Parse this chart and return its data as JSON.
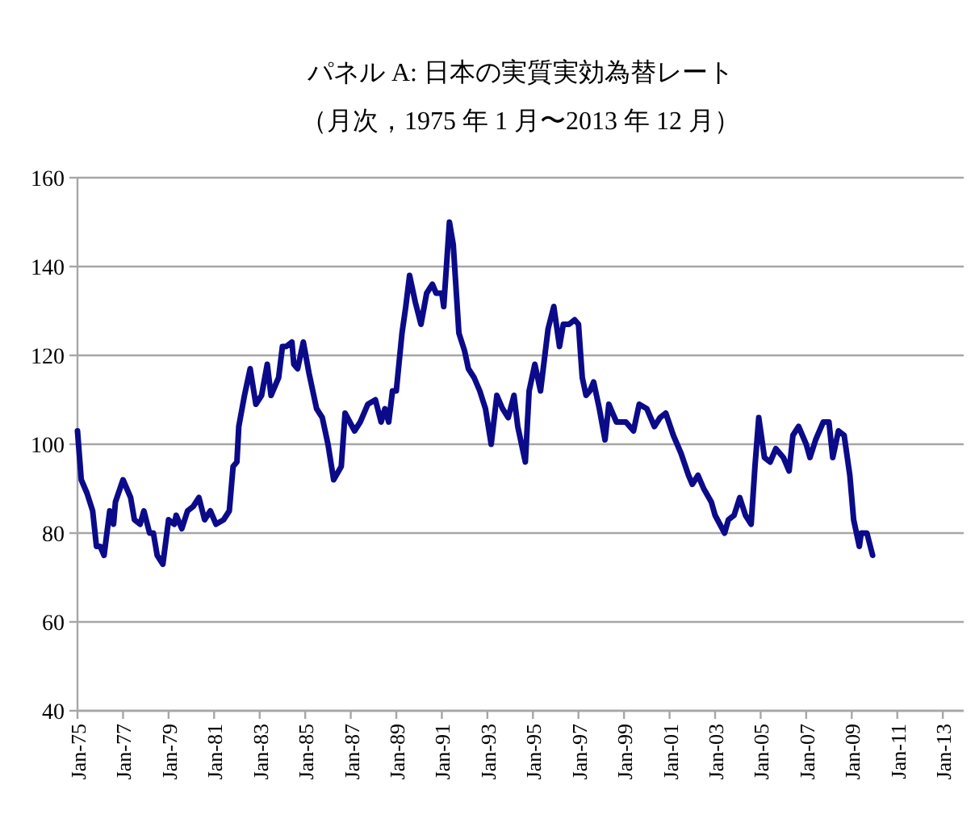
{
  "chart_data": {
    "type": "line",
    "title": "パネル A:  日本の実質実効為替レート",
    "subtitle": "（月次，1975 年 1 月〜2013 年 12 月）",
    "color": "#0b0b8a",
    "grid": "y",
    "xlim": [
      "1975-01",
      "2013-12"
    ],
    "ylim": [
      40,
      160
    ],
    "yticks": [
      40,
      60,
      80,
      100,
      120,
      140,
      160
    ],
    "xticks": [
      {
        "value": "1975-01",
        "label": "Jan-75"
      },
      {
        "value": "1977-01",
        "label": "Jan-77"
      },
      {
        "value": "1979-01",
        "label": "Jan-79"
      },
      {
        "value": "1981-01",
        "label": "Jan-81"
      },
      {
        "value": "1983-01",
        "label": "Jan-83"
      },
      {
        "value": "1985-01",
        "label": "Jan-85"
      },
      {
        "value": "1987-01",
        "label": "Jan-87"
      },
      {
        "value": "1989-01",
        "label": "Jan-89"
      },
      {
        "value": "1991-01",
        "label": "Jan-91"
      },
      {
        "value": "1993-01",
        "label": "Jan-93"
      },
      {
        "value": "1995-01",
        "label": "Jan-95"
      },
      {
        "value": "1997-01",
        "label": "Jan-97"
      },
      {
        "value": "1999-01",
        "label": "Jan-99"
      },
      {
        "value": "2001-01",
        "label": "Jan-01"
      },
      {
        "value": "2003-01",
        "label": "Jan-03"
      },
      {
        "value": "2005-01",
        "label": "Jan-05"
      },
      {
        "value": "2007-01",
        "label": "Jan-07"
      },
      {
        "value": "2009-01",
        "label": "Jan-09"
      },
      {
        "value": "2011-01",
        "label": "Jan-11"
      },
      {
        "value": "2013-01",
        "label": "Jan-13"
      }
    ],
    "x": [
      "1975-01",
      "1975-03",
      "1975-06",
      "1975-09",
      "1975-11",
      "1976-01",
      "1976-03",
      "1976-06",
      "1976-08",
      "1976-09",
      "1977-01",
      "1977-05",
      "1977-07",
      "1977-10",
      "1977-12",
      "1978-03",
      "1978-05",
      "1978-07",
      "1978-10",
      "1979-01",
      "1979-04",
      "1979-05",
      "1979-08",
      "1979-11",
      "1980-02",
      "1980-05",
      "1980-08",
      "1980-11",
      "1981-02",
      "1981-06",
      "1981-09",
      "1981-11",
      "1982-01",
      "1982-02",
      "1982-05",
      "1982-08",
      "1982-11",
      "1983-02",
      "1983-05",
      "1983-07",
      "1983-11",
      "1984-01",
      "1984-03",
      "1984-06",
      "1984-07",
      "1984-09",
      "1984-12",
      "1985-03",
      "1985-07",
      "1985-10",
      "1986-01",
      "1986-04",
      "1986-08",
      "1986-10",
      "1987-03",
      "1987-06",
      "1987-10",
      "1988-02",
      "1988-05",
      "1988-07",
      "1988-09",
      "1988-11",
      "1989-01",
      "1989-04",
      "1989-06",
      "1989-08",
      "1989-11",
      "1990-02",
      "1990-05",
      "1990-08",
      "1990-10",
      "1991-01",
      "1991-02",
      "1991-05",
      "1991-07",
      "1991-10",
      "1992-01",
      "1992-03",
      "1992-06",
      "1992-09",
      "1992-12",
      "1993-03",
      "1993-06",
      "1993-09",
      "1993-12",
      "1994-03",
      "1994-05",
      "1994-09",
      "1994-11",
      "1995-02",
      "1995-05",
      "1995-09",
      "1995-12",
      "1996-03",
      "1996-05",
      "1996-08",
      "1996-11",
      "1997-01",
      "1997-03",
      "1997-05",
      "1997-07",
      "1997-09",
      "1997-12",
      "1998-03",
      "1998-05",
      "1998-09",
      "1999-02",
      "1999-06",
      "1999-09",
      "2000-01",
      "2000-05",
      "2000-08",
      "2000-11",
      "2001-03",
      "2001-07",
      "2001-11",
      "2002-01",
      "2002-04",
      "2002-07",
      "2002-11",
      "2003-01",
      "2003-06",
      "2003-08",
      "2003-11",
      "2004-02",
      "2004-05",
      "2004-08",
      "2004-10",
      "2004-12",
      "2005-03",
      "2005-06",
      "2005-09",
      "2006-01",
      "2006-04",
      "2006-06",
      "2006-09",
      "2007-01",
      "2007-03",
      "2007-06",
      "2007-10",
      "2008-01",
      "2008-03",
      "2008-06",
      "2008-09",
      "2008-12",
      "2009-02",
      "2009-05",
      "2009-06",
      "2009-09",
      "2009-12"
    ],
    "values": [
      103,
      92,
      89,
      85,
      77,
      77,
      75,
      85,
      82,
      87,
      92,
      88,
      83,
      82,
      85,
      80,
      80,
      75,
      73,
      83,
      82,
      84,
      81,
      85,
      86,
      88,
      83,
      85,
      82,
      83,
      85,
      95,
      96,
      104,
      111,
      117,
      109,
      111,
      118,
      111,
      115,
      122,
      122,
      123,
      118,
      117,
      123,
      116,
      108,
      106,
      100,
      92,
      95,
      107,
      103,
      105,
      109,
      110,
      105,
      108,
      105,
      112,
      112,
      125,
      131,
      138,
      132,
      127,
      134,
      136,
      134,
      134,
      131,
      150,
      145,
      125,
      121,
      117,
      115,
      112,
      108,
      100,
      111,
      108,
      106,
      111,
      104,
      96,
      112,
      118,
      112,
      126,
      131,
      122,
      127,
      127,
      128,
      127,
      115,
      111,
      112,
      114,
      108,
      101,
      109,
      105,
      105,
      103,
      109,
      108,
      104,
      106,
      107,
      102,
      98,
      93,
      91,
      93,
      90,
      87,
      84,
      80,
      83,
      84,
      88,
      84,
      82,
      95,
      106,
      97,
      96,
      99,
      97,
      94,
      102,
      104,
      100,
      97,
      101,
      105,
      105,
      97,
      103,
      102,
      93,
      83,
      77,
      80,
      80,
      75
    ]
  }
}
